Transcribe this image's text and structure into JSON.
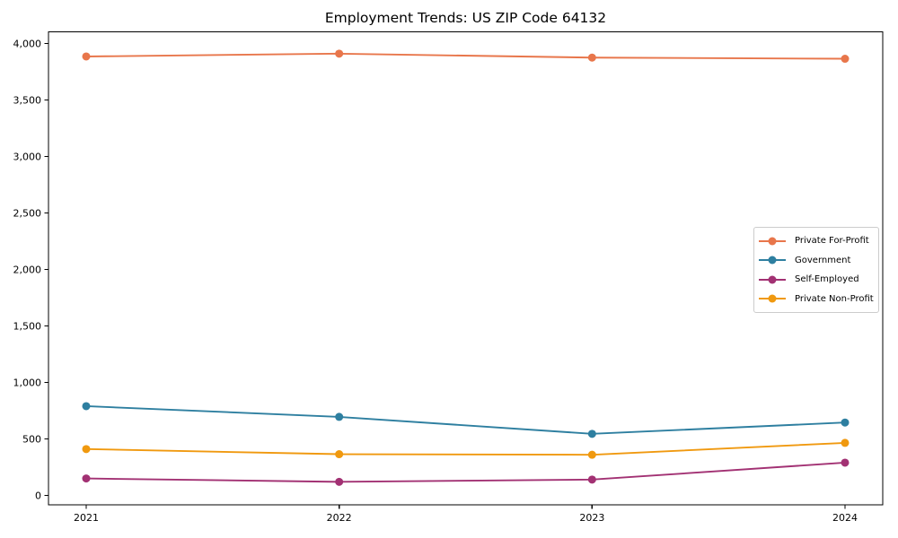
{
  "chart_data": {
    "type": "line",
    "title": "Employment Trends: US ZIP Code 64132",
    "xlabel": "",
    "ylabel": "",
    "x_labels": [
      "2021",
      "2022",
      "2023",
      "2024"
    ],
    "series": [
      {
        "name": "Private For-Profit",
        "color": "#e8764b",
        "values": [
          3885,
          3910,
          3875,
          3865
        ]
      },
      {
        "name": "Government",
        "color": "#2e7fa0",
        "values": [
          790,
          695,
          545,
          645
        ]
      },
      {
        "name": "Self-Employed",
        "color": "#a23173",
        "values": [
          150,
          120,
          140,
          290
        ]
      },
      {
        "name": "Private Non-Profit",
        "color": "#f0990f",
        "values": [
          410,
          365,
          360,
          465
        ]
      }
    ],
    "ylim": [
      0,
      4000
    ],
    "yticks": [
      0,
      500,
      1000,
      1500,
      2000,
      2500,
      3000,
      3500,
      4000
    ],
    "ytick_labels": [
      "0",
      "500",
      "1,000",
      "1,500",
      "2,000",
      "2,500",
      "3,000",
      "3,500",
      "4,000"
    ],
    "grid": false,
    "legend_position": "center-right",
    "marker": "circle",
    "colors": {
      "text": "#000000",
      "spine": "#000000",
      "background": "#ffffff",
      "legend_border": "#cccccc"
    }
  }
}
